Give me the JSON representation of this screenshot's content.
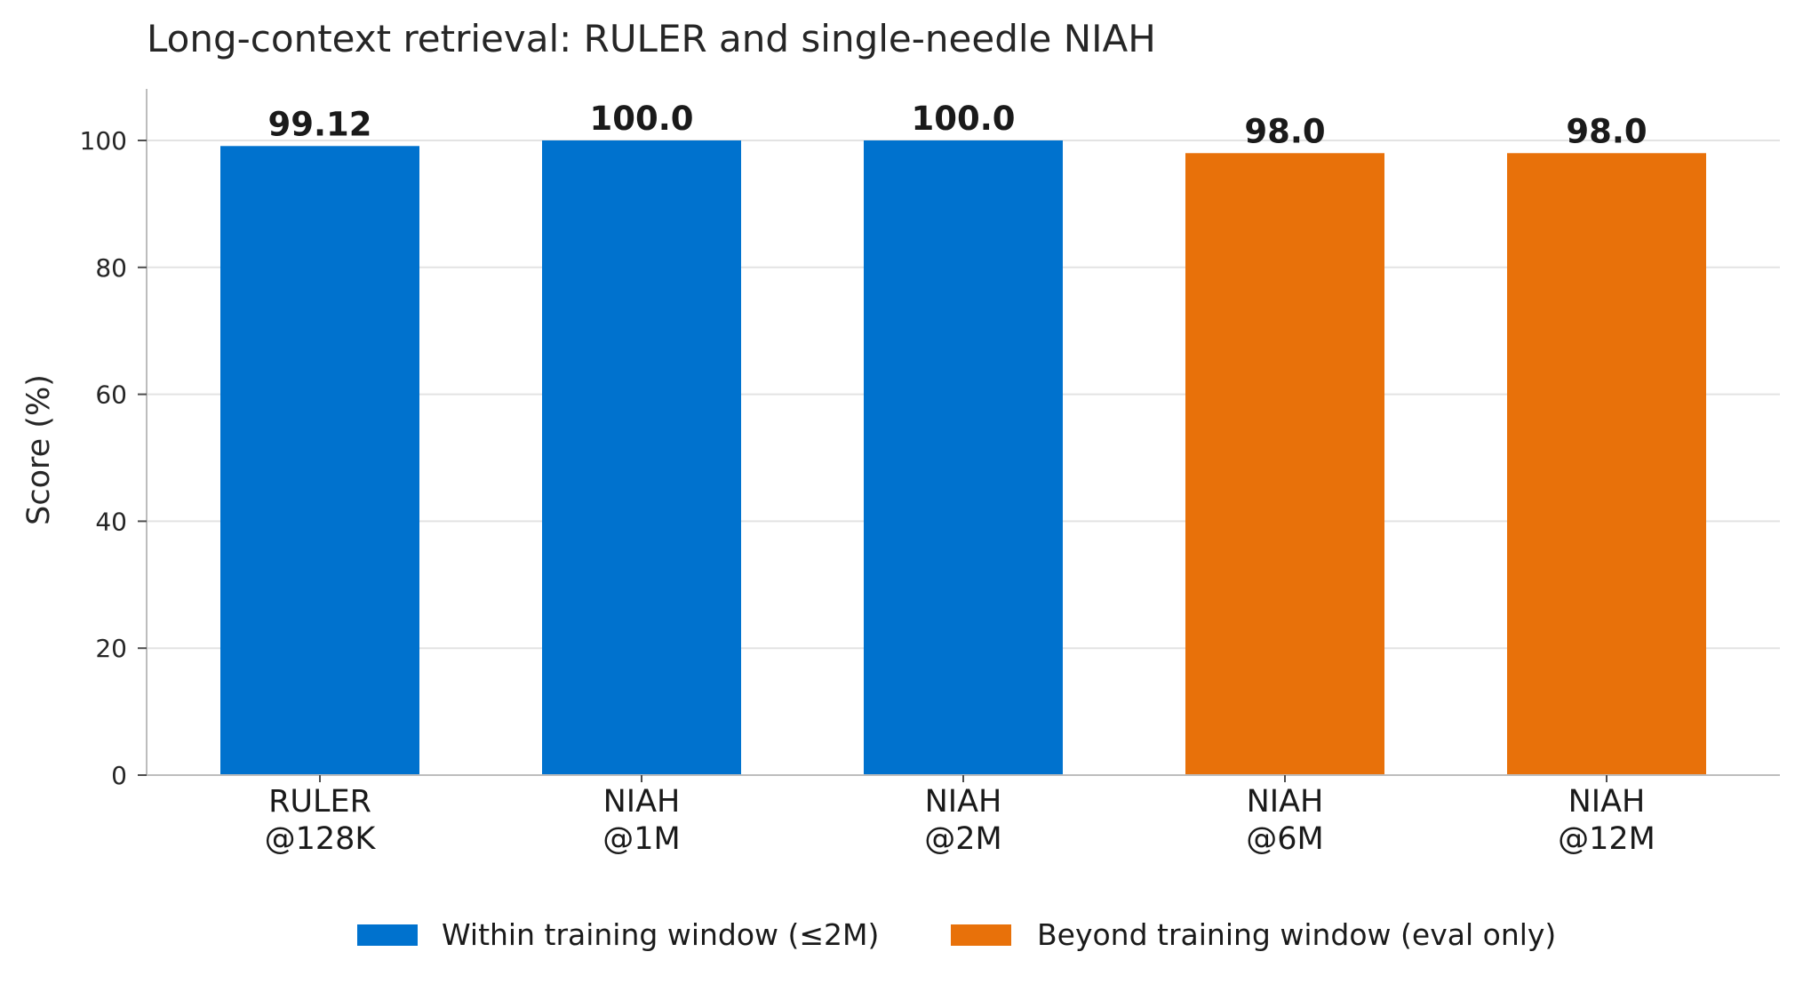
{
  "chart_data": {
    "type": "bar",
    "title": "Long-context retrieval: RULER and single-needle NIAH",
    "xlabel": "",
    "ylabel": "Score (%)",
    "ylim": [
      0,
      108
    ],
    "yticks": [
      0,
      20,
      40,
      60,
      80,
      100
    ],
    "grid": "horizontal",
    "legend_position": "bottom",
    "categories": [
      [
        "RULER",
        "@128K"
      ],
      [
        "NIAH",
        "@1M"
      ],
      [
        "NIAH",
        "@2M"
      ],
      [
        "NIAH",
        "@6M"
      ],
      [
        "NIAH",
        "@12M"
      ]
    ],
    "values": [
      99.12,
      100.0,
      100.0,
      98.0,
      98.0
    ],
    "value_labels": [
      "99.12",
      "100.0",
      "100.0",
      "98.0",
      "98.0"
    ],
    "bar_groups": [
      0,
      0,
      0,
      1,
      1
    ],
    "series": [
      {
        "name": "Within training window (≤2M)",
        "color": "#0072ce"
      },
      {
        "name": "Beyond training window (eval only)",
        "color": "#e8710a"
      }
    ]
  }
}
